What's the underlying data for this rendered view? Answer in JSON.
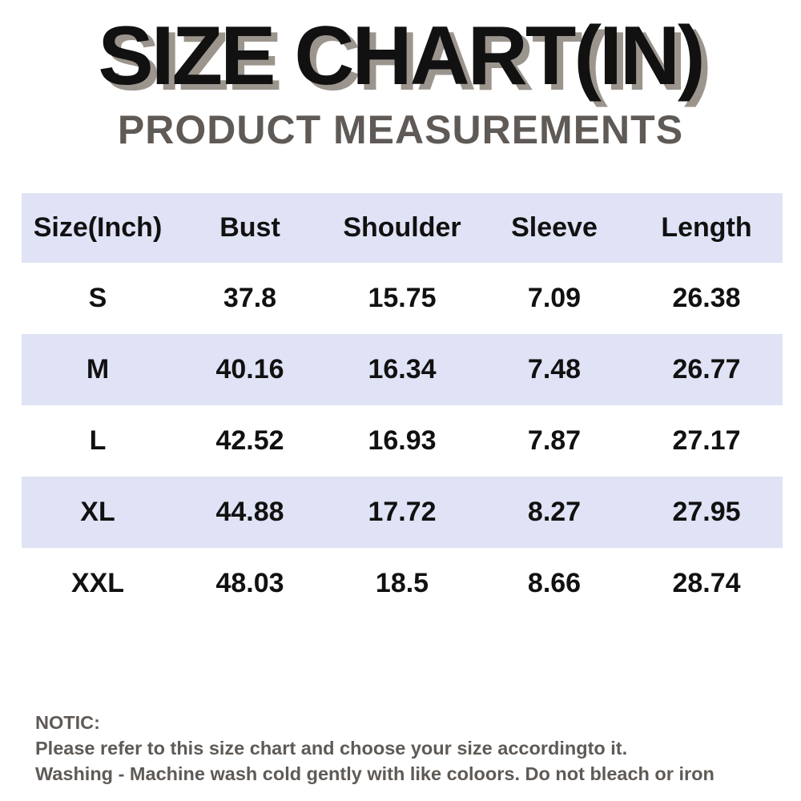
{
  "header": {
    "title": "SIZE CHART(IN)",
    "subtitle": "PRODUCT MEASUREMENTS"
  },
  "table": {
    "columns": [
      "Size(Inch)",
      "Bust",
      "Shoulder",
      "Sleeve",
      "Length"
    ],
    "rows": [
      [
        "S",
        "37.8",
        "15.75",
        "7.09",
        "26.38"
      ],
      [
        "M",
        "40.16",
        "16.34",
        "7.48",
        "26.77"
      ],
      [
        "L",
        "42.52",
        "16.93",
        "7.87",
        "27.17"
      ],
      [
        "XL",
        "44.88",
        "17.72",
        "8.27",
        "27.95"
      ],
      [
        "XXL",
        "48.03",
        "18.5",
        "8.66",
        "28.74"
      ]
    ]
  },
  "notice": {
    "heading": "NOTIC:",
    "line1": "Please refer to this size chart and choose your size accordingto it.",
    "line2": "Washing - Machine wash cold gently with like coloors. Do not bleach or iron"
  },
  "colors": {
    "shaded_row": "#dfe3f5",
    "title_shadow": "#9c958d",
    "subtitle_text": "#5f5a56"
  }
}
